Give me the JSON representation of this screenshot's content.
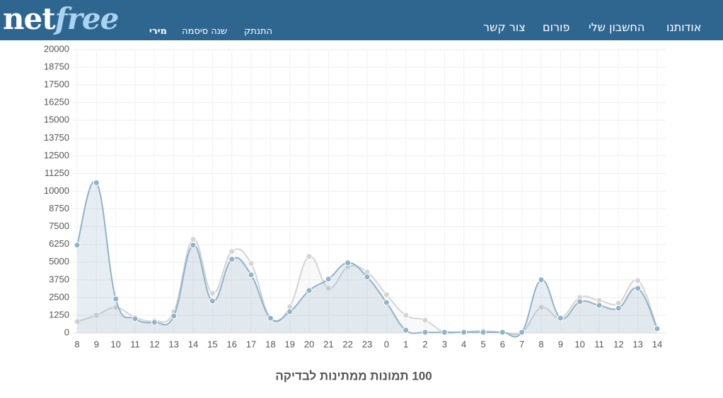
{
  "header": {
    "logo_main": "net",
    "logo_accent": "free",
    "user_links": [
      "מירי",
      "שנה סיסמה",
      "התנתק"
    ],
    "nav": [
      "אודותנו",
      "החשבון שלי",
      "פורום",
      "צור קשר"
    ]
  },
  "chart_data": {
    "type": "line",
    "title": "100 תמונות ממתינות לבדיקה",
    "categories": [
      "8",
      "9",
      "10",
      "11",
      "12",
      "13",
      "14",
      "15",
      "16",
      "17",
      "18",
      "19",
      "20",
      "21",
      "22",
      "23",
      "0",
      "1",
      "2",
      "3",
      "4",
      "5",
      "6",
      "7",
      "8",
      "9",
      "10",
      "11",
      "12",
      "13",
      "14"
    ],
    "series": [
      {
        "color": "#d4d4d4",
        "values": [
          800,
          1250,
          1800,
          1100,
          850,
          1500,
          6600,
          2800,
          5750,
          4900,
          1050,
          1850,
          5400,
          3150,
          4650,
          4300,
          2700,
          1250,
          900,
          50,
          100,
          150,
          50,
          50,
          1800,
          1050,
          2500,
          2300,
          2100,
          3700,
          350
        ]
      },
      {
        "color": "#8fb3c8",
        "fill": true,
        "values": [
          6200,
          10600,
          2400,
          1000,
          750,
          1200,
          6200,
          2250,
          5200,
          4100,
          1050,
          1500,
          3000,
          3800,
          4950,
          3950,
          2150,
          200,
          50,
          50,
          50,
          50,
          50,
          50,
          3750,
          1050,
          2200,
          1950,
          1750,
          3150,
          300
        ]
      }
    ],
    "ylim": [
      0,
      20000
    ],
    "yticks": [
      0,
      1250,
      2500,
      3750,
      5000,
      6250,
      7500,
      8750,
      10000,
      11250,
      12500,
      13750,
      15000,
      16250,
      17500,
      18750,
      20000
    ],
    "grid": true
  }
}
